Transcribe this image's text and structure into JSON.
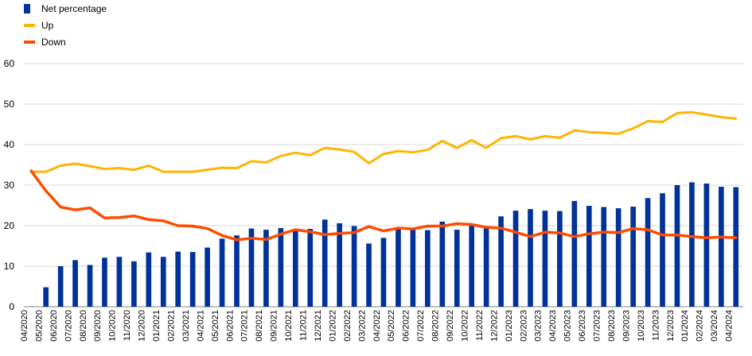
{
  "chart_data": {
    "type": "bar",
    "categories": [
      "04/2020",
      "05/2020",
      "06/2020",
      "07/2020",
      "08/2020",
      "09/2020",
      "10/2020",
      "11/2020",
      "12/2020",
      "01/2021",
      "02/2021",
      "03/2021",
      "04/2021",
      "05/2021",
      "06/2021",
      "07/2021",
      "08/2021",
      "09/2021",
      "10/2021",
      "11/2021",
      "12/2021",
      "01/2022",
      "02/2022",
      "03/2022",
      "04/2022",
      "05/2022",
      "06/2022",
      "07/2022",
      "08/2022",
      "09/2022",
      "10/2022",
      "11/2022",
      "12/2022",
      "01/2023",
      "02/2023",
      "03/2023",
      "04/2023",
      "05/2023",
      "06/2023",
      "07/2023",
      "08/2023",
      "09/2023",
      "10/2023",
      "11/2023",
      "12/2023",
      "01/2024",
      "02/2024",
      "03/2024",
      "04/2024"
    ],
    "series": [
      {
        "name": "Net percentage",
        "type": "bar",
        "color": "#003299",
        "values": [
          null,
          4.8,
          10.0,
          11.5,
          10.3,
          12.1,
          12.3,
          11.2,
          13.4,
          12.3,
          13.6,
          13.5,
          14.6,
          16.8,
          17.6,
          19.3,
          19.0,
          19.4,
          19.0,
          19.2,
          21.5,
          20.6,
          19.9,
          15.6,
          17.0,
          19.1,
          19.0,
          18.9,
          21.0,
          19.0,
          20.3,
          19.6,
          22.3,
          23.7,
          24.1,
          23.7,
          23.6,
          26.1,
          24.9,
          24.6,
          24.3,
          24.7,
          26.8,
          28.0,
          30.0,
          30.7,
          30.4,
          29.6,
          29.5
        ]
      },
      {
        "name": "Up",
        "type": "line",
        "color": "#FFB400",
        "values": [
          33.3,
          33.3,
          34.8,
          35.3,
          34.7,
          34.0,
          34.2,
          33.8,
          34.8,
          33.3,
          33.3,
          33.3,
          33.8,
          34.3,
          34.2,
          35.9,
          35.6,
          37.2,
          38.0,
          37.4,
          39.2,
          38.8,
          38.2,
          35.4,
          37.7,
          38.4,
          38.1,
          38.7,
          40.9,
          39.2,
          41.1,
          39.2,
          41.6,
          42.1,
          41.3,
          42.1,
          41.7,
          43.5,
          43.1,
          42.9,
          42.7,
          44.0,
          45.8,
          45.6,
          47.8,
          48.0,
          47.4,
          46.8,
          46.4
        ]
      },
      {
        "name": "Down",
        "type": "line",
        "color": "#FF4B00",
        "values": [
          33.5,
          28.6,
          24.6,
          23.9,
          24.4,
          21.9,
          22.0,
          22.4,
          21.5,
          21.2,
          20.0,
          19.9,
          19.3,
          17.6,
          16.5,
          16.9,
          16.6,
          17.9,
          19.0,
          18.5,
          17.8,
          18.1,
          18.3,
          19.8,
          18.7,
          19.4,
          19.2,
          19.9,
          19.9,
          20.5,
          20.3,
          19.6,
          19.4,
          18.4,
          17.3,
          18.4,
          18.2,
          17.3,
          18.0,
          18.4,
          18.3,
          19.3,
          19.0,
          17.7,
          17.7,
          17.3,
          17.0,
          17.2,
          17.0
        ]
      }
    ],
    "ylim": [
      0,
      60
    ],
    "yticks": [
      "0",
      "10",
      "20",
      "30",
      "40",
      "50",
      "60"
    ],
    "grid": true,
    "legend": "top-left"
  }
}
